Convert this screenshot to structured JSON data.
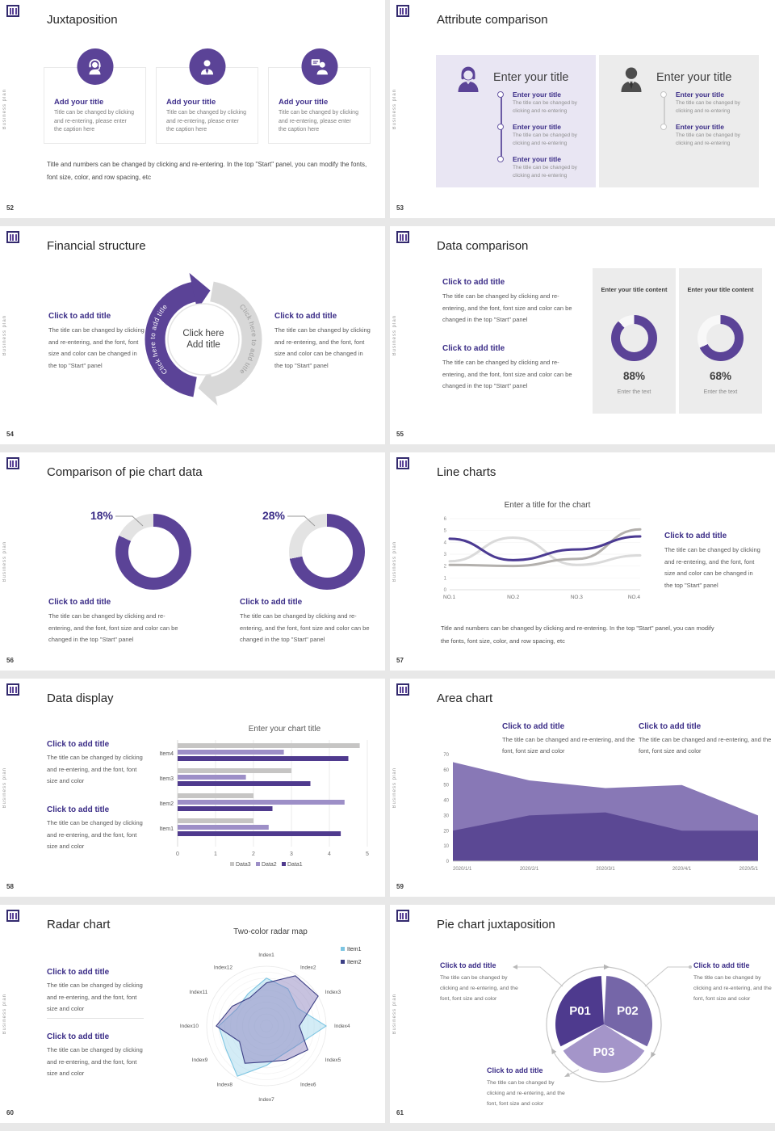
{
  "page": {
    "background": "#e8e8e8"
  },
  "brand": {
    "vertical_label": "Business plan",
    "purple": "#5b4397"
  },
  "common": {
    "heading": "Click to add title",
    "body_long": "The title can be changed by clicking and re-entering, and the font, font size and color can be changed in the top \"Start\" panel",
    "body_short": "The title can be changed by clicking and re-entering, and the font, font size and color",
    "footer_note": "Title and numbers can be changed by clicking and re-entering. In the top \"Start\" panel, you can modify the fonts, font size, color, and row spacing, etc"
  },
  "slides": {
    "s52": {
      "number": "52",
      "title": "Juxtaposition",
      "card_title": "Add your title",
      "card_caption": "Title can be changed by clicking and re-entering, please enter the caption here"
    },
    "s53": {
      "number": "53",
      "title": "Attribute comparison",
      "panel_heading": "Enter your title",
      "item_title": "Enter your title",
      "item_caption": "The title can be changed by clicking and re-entering",
      "left_item_count": 3,
      "right_item_count": 2
    },
    "s54": {
      "number": "54",
      "title": "Financial structure",
      "arc_label": "Click here to add title",
      "center_line1": "Click here",
      "center_line2": "Add title"
    },
    "s55": {
      "number": "55",
      "title": "Data comparison",
      "card_header": "Enter your title content",
      "card_caption": "Enter the text",
      "donut_color": "#5b4397",
      "donut_track": "#f8f8f8",
      "donuts": [
        {
          "percent": 88,
          "label": "88%"
        },
        {
          "percent": 68,
          "label": "68%"
        }
      ]
    },
    "s56": {
      "number": "56",
      "title": "Comparison of pie chart data",
      "purple": "#5b4397",
      "gray": "#e3e3e3",
      "donuts": [
        {
          "gray_percent": 18,
          "label": "18%"
        },
        {
          "gray_percent": 28,
          "label": "28%"
        }
      ]
    },
    "s57": {
      "number": "57",
      "title": "Line charts",
      "chart_data": {
        "type": "line",
        "title": "Enter a title for the chart",
        "categories": [
          "NO.1",
          "NO.2",
          "NO.3",
          "NO.4"
        ],
        "ylim": [
          0,
          6
        ],
        "yticks": [
          0,
          1,
          2,
          3,
          4,
          5,
          6
        ],
        "grid": true,
        "series": [
          {
            "name": "series-light-gray",
            "color": "#dadada",
            "values": [
              2.4,
              4.4,
              2.1,
              2.9
            ]
          },
          {
            "name": "series-gray",
            "color": "#b3b0ad",
            "values": [
              2.1,
              2.0,
              2.6,
              5.1
            ]
          },
          {
            "name": "series-purple",
            "color": "#4b3a92",
            "values": [
              4.3,
              2.5,
              3.4,
              4.5
            ]
          }
        ]
      }
    },
    "s58": {
      "number": "58",
      "title": "Data display",
      "chart_data": {
        "type": "bar",
        "orientation": "horizontal",
        "title": "Enter your chart title",
        "categories": [
          "Item1",
          "Item2",
          "Item3",
          "Item4"
        ],
        "xlim": [
          0,
          5
        ],
        "xticks": [
          0,
          1,
          2,
          3,
          4,
          5
        ],
        "series": [
          {
            "name": "Data1",
            "color": "#4f3a8e",
            "values": [
              4.3,
              2.5,
              3.5,
              4.5
            ]
          },
          {
            "name": "Data2",
            "color": "#9d8fc7",
            "values": [
              2.4,
              4.4,
              1.8,
              2.8
            ]
          },
          {
            "name": "Data3",
            "color": "#c6c5c4",
            "values": [
              2.0,
              2.0,
              3.0,
              4.8
            ]
          }
        ],
        "legend": [
          "Data3",
          "Data2",
          "Data1"
        ],
        "legend_position": "bottom"
      }
    },
    "s59": {
      "number": "59",
      "title": "Area chart",
      "body": "The title can be changed and re-entering, and the font, font size and color",
      "chart_data": {
        "type": "area",
        "x": [
          "2020/1/1",
          "2020/2/1",
          "2020/3/1",
          "2020/4/1",
          "2020/5/1"
        ],
        "ylim": [
          0,
          70
        ],
        "yticks": [
          0,
          10,
          20,
          30,
          40,
          50,
          60,
          70
        ],
        "series": [
          {
            "name": "upper",
            "color": "#8878b6",
            "values": [
              65,
              53,
              48,
              50,
              30
            ]
          },
          {
            "name": "lower",
            "color": "#5b4894",
            "values": [
              20,
              30,
              32,
              20,
              20
            ]
          }
        ]
      }
    },
    "s60": {
      "number": "60",
      "title": "Radar chart",
      "chart_data": {
        "type": "radar",
        "title": "Two-color radar map",
        "axes": [
          "Index1",
          "Index2",
          "Index3",
          "Index4",
          "Index5",
          "Index6",
          "Index7",
          "Index8",
          "Index9",
          "Index10",
          "Index11",
          "Index12"
        ],
        "rmax": 100,
        "series": [
          {
            "name": "Item1",
            "stroke": "#7cc5e2",
            "fill": "rgba(158,213,235,0.45)",
            "values": [
              80,
              72,
              60,
              100,
              62,
              55,
              66,
              97,
              78,
              80,
              57,
              62
            ]
          },
          {
            "name": "Item2",
            "stroke": "#3c3f85",
            "fill": "rgba(130,120,185,0.45)",
            "values": [
              72,
              97,
              100,
              55,
              80,
              66,
              60,
              72,
              52,
              84,
              66,
              55
            ]
          }
        ],
        "legend_position": "top-right"
      }
    },
    "s61": {
      "number": "61",
      "title": "Pie chart juxtaposition",
      "chart_data": {
        "type": "pie",
        "segments": [
          {
            "label": "P01",
            "color": "#4e3a8e"
          },
          {
            "label": "P02",
            "color": "#7566a8"
          },
          {
            "label": "P03",
            "color": "#a495c9"
          }
        ]
      }
    }
  }
}
